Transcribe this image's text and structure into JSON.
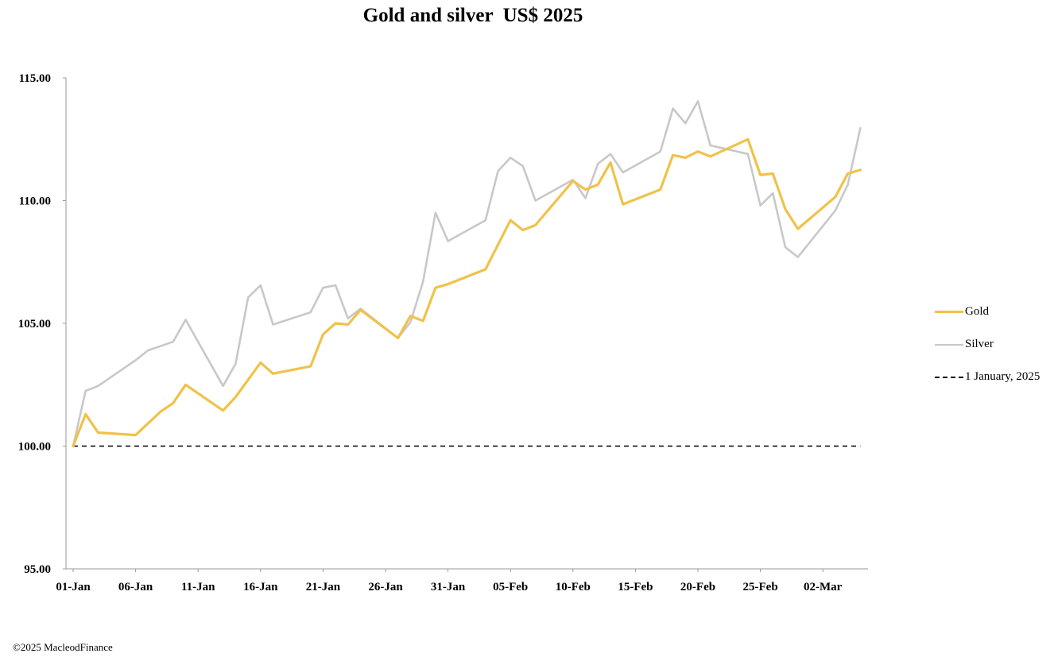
{
  "chart_data": {
    "type": "line",
    "title": "Gold and silver  US$ 2025",
    "xlabel": "",
    "ylabel": "",
    "ylim": [
      95,
      115
    ],
    "yticks": [
      "95.00",
      "100.00",
      "105.00",
      "110.00",
      "115.00"
    ],
    "x_start": "01-Jan",
    "x_ticks": [
      "01-Jan",
      "06-Jan",
      "11-Jan",
      "16-Jan",
      "21-Jan",
      "26-Jan",
      "31-Jan",
      "05-Feb",
      "10-Feb",
      "15-Feb",
      "20-Feb",
      "25-Feb",
      "02-Mar"
    ],
    "grid": false,
    "legend_position": "right",
    "series": [
      {
        "name": "Gold",
        "color": "#f0c24a",
        "style": "solid",
        "points": [
          [
            "01-Jan",
            100.0
          ],
          [
            "02-Jan",
            101.3
          ],
          [
            "03-Jan",
            100.55
          ],
          [
            "06-Jan",
            100.45
          ],
          [
            "08-Jan",
            101.4
          ],
          [
            "09-Jan",
            101.75
          ],
          [
            "10-Jan",
            102.5
          ],
          [
            "13-Jan",
            101.45
          ],
          [
            "14-Jan",
            102.0
          ],
          [
            "16-Jan",
            103.4
          ],
          [
            "17-Jan",
            102.95
          ],
          [
            "20-Jan",
            103.25
          ],
          [
            "21-Jan",
            104.55
          ],
          [
            "22-Jan",
            105.0
          ],
          [
            "23-Jan",
            104.95
          ],
          [
            "24-Jan",
            105.55
          ],
          [
            "27-Jan",
            104.4
          ],
          [
            "28-Jan",
            105.3
          ],
          [
            "29-Jan",
            105.1
          ],
          [
            "30-Jan",
            106.45
          ],
          [
            "31-Jan",
            106.6
          ],
          [
            "03-Feb",
            107.2
          ],
          [
            "05-Feb",
            109.2
          ],
          [
            "06-Feb",
            108.8
          ],
          [
            "07-Feb",
            109.0
          ],
          [
            "10-Feb",
            110.8
          ],
          [
            "11-Feb",
            110.45
          ],
          [
            "12-Feb",
            110.65
          ],
          [
            "13-Feb",
            111.55
          ],
          [
            "14-Feb",
            109.85
          ],
          [
            "17-Feb",
            110.45
          ],
          [
            "18-Feb",
            111.85
          ],
          [
            "19-Feb",
            111.75
          ],
          [
            "20-Feb",
            112.0
          ],
          [
            "21-Feb",
            111.8
          ],
          [
            "24-Feb",
            112.5
          ],
          [
            "25-Feb",
            111.05
          ],
          [
            "26-Feb",
            111.1
          ],
          [
            "27-Feb",
            109.65
          ],
          [
            "28-Feb",
            108.85
          ],
          [
            "03-Mar",
            110.15
          ],
          [
            "04-Mar",
            111.1
          ],
          [
            "05-Mar",
            111.25
          ]
        ]
      },
      {
        "name": "Silver",
        "color": "#c8c8c8",
        "style": "solid",
        "points": [
          [
            "01-Jan",
            100.0
          ],
          [
            "02-Jan",
            102.25
          ],
          [
            "03-Jan",
            102.45
          ],
          [
            "06-Jan",
            103.5
          ],
          [
            "07-Jan",
            103.9
          ],
          [
            "09-Jan",
            104.25
          ],
          [
            "10-Jan",
            105.15
          ],
          [
            "13-Jan",
            102.45
          ],
          [
            "14-Jan",
            103.35
          ],
          [
            "15-Jan",
            106.05
          ],
          [
            "16-Jan",
            106.55
          ],
          [
            "17-Jan",
            104.95
          ],
          [
            "20-Jan",
            105.45
          ],
          [
            "21-Jan",
            106.45
          ],
          [
            "22-Jan",
            106.55
          ],
          [
            "23-Jan",
            105.2
          ],
          [
            "24-Jan",
            105.6
          ],
          [
            "27-Jan",
            104.4
          ],
          [
            "28-Jan",
            105.05
          ],
          [
            "29-Jan",
            106.7
          ],
          [
            "30-Jan",
            109.5
          ],
          [
            "31-Jan",
            108.35
          ],
          [
            "03-Feb",
            109.2
          ],
          [
            "04-Feb",
            111.2
          ],
          [
            "05-Feb",
            111.75
          ],
          [
            "06-Feb",
            111.4
          ],
          [
            "07-Feb",
            110.0
          ],
          [
            "10-Feb",
            110.85
          ],
          [
            "11-Feb",
            110.1
          ],
          [
            "12-Feb",
            111.5
          ],
          [
            "13-Feb",
            111.9
          ],
          [
            "14-Feb",
            111.15
          ],
          [
            "17-Feb",
            112.0
          ],
          [
            "18-Feb",
            113.75
          ],
          [
            "19-Feb",
            113.15
          ],
          [
            "20-Feb",
            114.05
          ],
          [
            "21-Feb",
            112.25
          ],
          [
            "24-Feb",
            111.9
          ],
          [
            "25-Feb",
            109.8
          ],
          [
            "26-Feb",
            110.3
          ],
          [
            "27-Feb",
            108.1
          ],
          [
            "28-Feb",
            107.7
          ],
          [
            "03-Mar",
            109.6
          ],
          [
            "04-Mar",
            110.65
          ],
          [
            "05-Mar",
            112.95
          ]
        ]
      },
      {
        "name": "1 January, 2025",
        "color": "#000000",
        "style": "dashed",
        "points": [
          [
            "01-Jan",
            100.0
          ],
          [
            "05-Mar",
            100.0
          ]
        ]
      }
    ]
  },
  "footer": {
    "copyright": "©2025 MacleodFinance"
  }
}
